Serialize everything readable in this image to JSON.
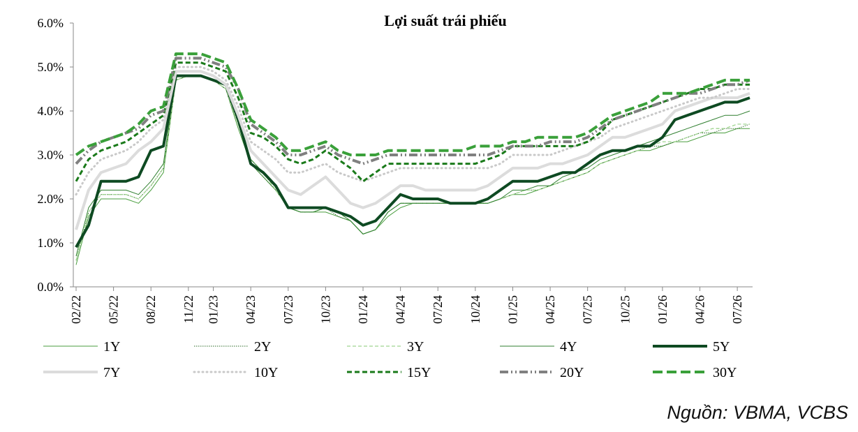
{
  "chart_data": {
    "type": "line",
    "title": "Lợi suất trái phiếu",
    "xlabel": "",
    "ylabel": "",
    "ylim": [
      0,
      6
    ],
    "yticks": [
      "0.0%",
      "1.0%",
      "2.0%",
      "3.0%",
      "4.0%",
      "5.0%",
      "6.0%"
    ],
    "xticks": [
      "02/22",
      "05/22",
      "08/22",
      "11/22",
      "01/23",
      "04/23",
      "07/23",
      "10/23",
      "01/24",
      "04/24",
      "07/24",
      "10/24",
      "01/25",
      "04/25",
      "07/25",
      "10/25",
      "01/26",
      "04/26",
      "07/26"
    ],
    "x": [
      "02/22",
      "03/22",
      "04/22",
      "05/22",
      "06/22",
      "07/22",
      "08/22",
      "09/22",
      "10/22",
      "11/22",
      "12/22",
      "01/23",
      "02/23",
      "03/23",
      "04/23",
      "05/23",
      "06/23",
      "07/23",
      "08/23",
      "09/23",
      "10/23",
      "11/23",
      "12/23",
      "01/24",
      "02/24",
      "03/24",
      "04/24",
      "05/24",
      "06/24",
      "07/24",
      "08/24",
      "09/24",
      "10/24",
      "11/24",
      "12/24",
      "01/25",
      "02/25",
      "03/25",
      "04/25",
      "05/25",
      "06/25",
      "07/25",
      "08/25",
      "09/25",
      "10/25",
      "11/25",
      "12/25",
      "01/26",
      "02/26",
      "03/26",
      "04/26",
      "05/26",
      "06/26",
      "07/26",
      "08/26"
    ],
    "series": [
      {
        "name": "1Y",
        "color": "#4a9e3f",
        "width": 1,
        "dash": "",
        "values": [
          0.5,
          1.6,
          2.0,
          2.0,
          2.0,
          1.9,
          2.2,
          2.6,
          4.7,
          4.8,
          4.8,
          4.7,
          4.5,
          3.6,
          2.8,
          2.5,
          2.2,
          1.8,
          1.7,
          1.7,
          1.7,
          1.6,
          1.5,
          1.2,
          1.3,
          1.6,
          1.8,
          1.9,
          1.9,
          1.9,
          1.9,
          1.9,
          1.9,
          1.9,
          2.0,
          2.1,
          2.1,
          2.2,
          2.3,
          2.4,
          2.5,
          2.6,
          2.8,
          2.9,
          3.0,
          3.1,
          3.1,
          3.2,
          3.3,
          3.3,
          3.4,
          3.5,
          3.5,
          3.6,
          3.6
        ]
      },
      {
        "name": "2Y",
        "color": "#2d6b27",
        "width": 1,
        "dash": "1.5 1.5",
        "values": [
          0.6,
          1.7,
          2.1,
          2.1,
          2.1,
          2.0,
          2.3,
          2.7,
          4.7,
          4.8,
          4.8,
          4.7,
          4.5,
          3.7,
          2.8,
          2.5,
          2.2,
          1.8,
          1.7,
          1.7,
          1.8,
          1.6,
          1.5,
          1.2,
          1.3,
          1.7,
          1.9,
          1.9,
          1.9,
          1.9,
          1.9,
          1.9,
          1.9,
          1.9,
          2.0,
          2.1,
          2.2,
          2.2,
          2.3,
          2.4,
          2.5,
          2.6,
          2.8,
          2.9,
          3.0,
          3.1,
          3.2,
          3.2,
          3.3,
          3.4,
          3.5,
          3.5,
          3.6,
          3.6,
          3.7
        ]
      },
      {
        "name": "3Y",
        "color": "#9fd58f",
        "width": 1.3,
        "dash": "5 3",
        "values": [
          0.6,
          1.7,
          2.1,
          2.1,
          2.1,
          2.0,
          2.3,
          2.7,
          4.7,
          4.8,
          4.8,
          4.7,
          4.5,
          3.7,
          2.9,
          2.6,
          2.2,
          1.8,
          1.7,
          1.7,
          1.8,
          1.7,
          1.5,
          1.2,
          1.3,
          1.7,
          1.9,
          1.9,
          1.9,
          1.9,
          1.9,
          1.9,
          1.9,
          1.9,
          2.0,
          2.1,
          2.2,
          2.2,
          2.3,
          2.4,
          2.5,
          2.6,
          2.8,
          2.9,
          3.0,
          3.1,
          3.2,
          3.3,
          3.3,
          3.4,
          3.5,
          3.6,
          3.6,
          3.7,
          3.7
        ]
      },
      {
        "name": "4Y",
        "color": "#2f7f2f",
        "width": 1,
        "dash": "",
        "values": [
          0.7,
          1.8,
          2.2,
          2.2,
          2.2,
          2.1,
          2.4,
          2.8,
          4.8,
          4.8,
          4.8,
          4.7,
          4.6,
          3.8,
          2.9,
          2.6,
          2.3,
          1.8,
          1.7,
          1.7,
          1.8,
          1.7,
          1.5,
          1.2,
          1.3,
          1.7,
          1.9,
          1.9,
          1.9,
          1.9,
          1.9,
          1.9,
          1.9,
          1.9,
          2.0,
          2.2,
          2.2,
          2.3,
          2.3,
          2.5,
          2.6,
          2.7,
          2.9,
          3.0,
          3.1,
          3.2,
          3.3,
          3.4,
          3.5,
          3.6,
          3.7,
          3.8,
          3.9,
          3.9,
          4.0
        ]
      },
      {
        "name": "5Y",
        "color": "#0e4a22",
        "width": 4,
        "dash": "",
        "values": [
          0.9,
          1.4,
          2.4,
          2.4,
          2.4,
          2.5,
          3.1,
          3.2,
          4.8,
          4.8,
          4.8,
          4.7,
          4.6,
          3.8,
          2.8,
          2.6,
          2.3,
          1.8,
          1.8,
          1.8,
          1.8,
          1.7,
          1.6,
          1.4,
          1.5,
          1.8,
          2.1,
          2.0,
          2.0,
          2.0,
          1.9,
          1.9,
          1.9,
          2.0,
          2.2,
          2.4,
          2.4,
          2.4,
          2.5,
          2.6,
          2.6,
          2.8,
          3.0,
          3.1,
          3.1,
          3.2,
          3.2,
          3.4,
          3.8,
          3.9,
          4.0,
          4.1,
          4.2,
          4.2,
          4.3
        ]
      },
      {
        "name": "7Y",
        "color": "#dcdcdc",
        "width": 4,
        "dash": "",
        "values": [
          1.3,
          2.2,
          2.6,
          2.7,
          2.8,
          3.1,
          3.3,
          3.6,
          4.9,
          4.9,
          4.9,
          4.8,
          4.6,
          3.9,
          3.1,
          2.8,
          2.5,
          2.2,
          2.1,
          2.3,
          2.5,
          2.2,
          1.9,
          1.8,
          1.9,
          2.1,
          2.3,
          2.3,
          2.2,
          2.2,
          2.2,
          2.2,
          2.2,
          2.3,
          2.5,
          2.7,
          2.7,
          2.7,
          2.8,
          2.8,
          2.9,
          3.0,
          3.2,
          3.4,
          3.4,
          3.5,
          3.6,
          3.7,
          4.0,
          4.1,
          4.2,
          4.3,
          4.3,
          4.3,
          4.4
        ]
      },
      {
        "name": "10Y",
        "color": "#c9c9c9",
        "width": 3,
        "dash": "1 5",
        "values": [
          2.1,
          2.6,
          2.9,
          3.0,
          3.1,
          3.3,
          3.6,
          3.8,
          5.0,
          5.0,
          5.0,
          4.9,
          4.7,
          4.1,
          3.3,
          3.1,
          2.9,
          2.6,
          2.6,
          2.7,
          2.8,
          2.6,
          2.5,
          2.4,
          2.5,
          2.6,
          2.7,
          2.7,
          2.7,
          2.7,
          2.7,
          2.7,
          2.7,
          2.7,
          2.8,
          3.0,
          3.0,
          3.0,
          3.0,
          3.1,
          3.2,
          3.3,
          3.4,
          3.6,
          3.7,
          3.8,
          3.9,
          4.0,
          4.1,
          4.2,
          4.3,
          4.3,
          4.4,
          4.5,
          4.5
        ]
      },
      {
        "name": "15Y",
        "color": "#1a7a1a",
        "width": 3,
        "dash": "7 4",
        "values": [
          2.4,
          2.9,
          3.1,
          3.2,
          3.3,
          3.5,
          3.7,
          3.9,
          5.1,
          5.1,
          5.1,
          5.0,
          4.9,
          4.3,
          3.5,
          3.4,
          3.2,
          2.9,
          2.8,
          2.9,
          3.1,
          2.9,
          2.7,
          2.4,
          2.6,
          2.8,
          2.8,
          2.8,
          2.8,
          2.8,
          2.8,
          2.8,
          2.8,
          2.9,
          3.0,
          3.2,
          3.2,
          3.2,
          3.2,
          3.2,
          3.2,
          3.3,
          3.5,
          3.8,
          3.9,
          4.0,
          4.1,
          4.2,
          4.3,
          4.4,
          4.5,
          4.5,
          4.6,
          4.6,
          4.6
        ]
      },
      {
        "name": "20Y",
        "color": "#808080",
        "width": 4,
        "dash": "12 4 2 4 2 4",
        "values": [
          2.8,
          3.1,
          3.3,
          3.4,
          3.5,
          3.6,
          3.9,
          4.0,
          5.2,
          5.2,
          5.2,
          5.1,
          5.0,
          4.5,
          3.7,
          3.5,
          3.3,
          3.0,
          3.0,
          3.1,
          3.2,
          3.0,
          2.9,
          2.8,
          2.9,
          3.0,
          3.0,
          3.0,
          3.0,
          3.0,
          3.0,
          3.0,
          3.0,
          3.0,
          3.1,
          3.2,
          3.2,
          3.2,
          3.3,
          3.3,
          3.3,
          3.4,
          3.6,
          3.8,
          3.9,
          4.0,
          4.1,
          4.2,
          4.3,
          4.4,
          4.4,
          4.5,
          4.6,
          4.6,
          4.7
        ]
      },
      {
        "name": "30Y",
        "color": "#3aa03a",
        "width": 4,
        "dash": "14 6",
        "values": [
          3.0,
          3.2,
          3.3,
          3.4,
          3.5,
          3.7,
          4.0,
          4.1,
          5.3,
          5.3,
          5.3,
          5.2,
          5.1,
          4.5,
          3.8,
          3.6,
          3.4,
          3.1,
          3.1,
          3.2,
          3.3,
          3.1,
          3.0,
          3.0,
          3.0,
          3.1,
          3.1,
          3.1,
          3.1,
          3.1,
          3.1,
          3.1,
          3.2,
          3.2,
          3.2,
          3.3,
          3.3,
          3.4,
          3.4,
          3.4,
          3.4,
          3.5,
          3.7,
          3.9,
          4.0,
          4.1,
          4.2,
          4.4,
          4.4,
          4.4,
          4.5,
          4.6,
          4.7,
          4.7,
          4.7
        ]
      }
    ]
  },
  "source": "Nguồn: VBMA, VCBS"
}
